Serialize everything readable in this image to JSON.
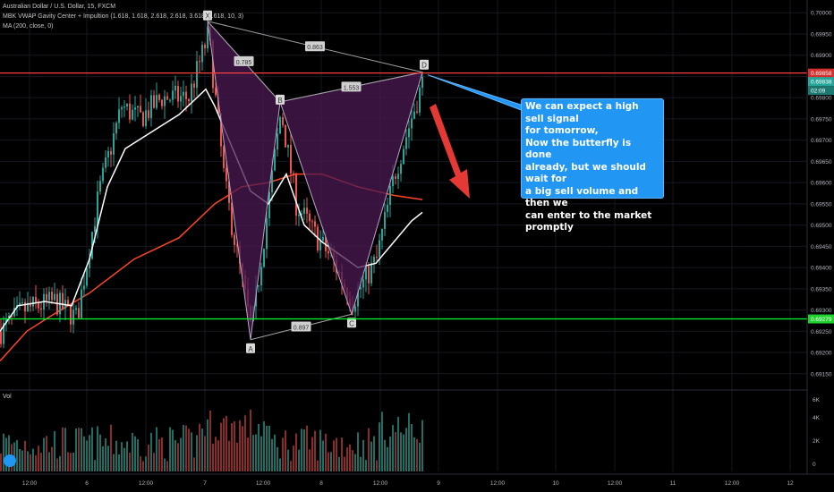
{
  "legend": {
    "symbol": "Australian Dollar / U.S. Dollar, 15, FXCM",
    "indicator1": "MBK VWAP Gavity Center + Impultion (1.618, 1.618, 2.618, 2.618, 3.618, 3.618, 10, 3)",
    "indicator2": "MA (200, close, 0)"
  },
  "volume_label": "Vol",
  "callout_text": "We can expect a high sell signal\nfor tomorrow,\nNow the butterfly is done\nalready, but we should wait for\na big sell volume and then we\ncan enter to the market\npromptly",
  "colors": {
    "background": "#000000",
    "up": "#26a69a",
    "down": "#ef5350",
    "red_line": "#ff4040",
    "green_line": "#00ff2a",
    "pattern_fill": "#4a1a52",
    "ma": "#ff4526",
    "vwap": "#ffffff",
    "callout": "#2196f3",
    "arrow": "#e53935"
  },
  "chart_data": {
    "type": "candlestick",
    "price_axis": {
      "ticks": [
        "0.70000",
        "0.69950",
        "0.69900",
        "0.69850",
        "0.69800",
        "0.69750",
        "0.69700",
        "0.69650",
        "0.69600",
        "0.69550",
        "0.69500",
        "0.69450",
        "0.69400",
        "0.69350",
        "0.69300",
        "0.69250",
        "0.69200",
        "0.69150"
      ],
      "range": [
        0.6912,
        0.7003
      ]
    },
    "price_labels": [
      {
        "value": 0.69858,
        "text": "0.69858",
        "color": "#d32f2f"
      },
      {
        "value": 0.69838,
        "text": "0.69838",
        "color": "#26a69a"
      },
      {
        "value": 0.69817,
        "text": "02:09",
        "color": "#1c7a73"
      },
      {
        "value": 0.69279,
        "text": "0.69279",
        "color": "#1fd12d"
      }
    ],
    "horizontal_lines": [
      {
        "value": 0.69858,
        "color": "#ff4040"
      },
      {
        "value": 0.69279,
        "color": "#00ff2a"
      }
    ],
    "time_axis": [
      "12:00",
      "6",
      "12:00",
      "7",
      "12:00",
      "8",
      "12:00",
      "9",
      "12:00",
      "10",
      "12:00",
      "11",
      "12:00",
      "12",
      "12:00",
      "13",
      "12:00",
      "14"
    ],
    "volume_axis": [
      "6K",
      "4K",
      "2K",
      "0"
    ],
    "pattern": {
      "name": "butterfly",
      "points": [
        {
          "label": "X",
          "bar": 232,
          "price": 0.6998
        },
        {
          "label": "A",
          "bar": 280,
          "price": 0.6923
        },
        {
          "label": "B",
          "bar": 313,
          "price": 0.6979
        },
        {
          "label": "C",
          "bar": 393,
          "price": 0.6929
        },
        {
          "label": "D",
          "bar": 472,
          "price": 0.6986
        }
      ],
      "ratios": [
        {
          "text": "0.785",
          "between": "XB"
        },
        {
          "text": "0.863",
          "between": "XD"
        },
        {
          "text": "1.553",
          "between": "BD"
        },
        {
          "text": "0.897",
          "between": "AC"
        }
      ]
    },
    "ma200": [
      [
        0,
        0.6918
      ],
      [
        30,
        0.6925
      ],
      [
        60,
        0.6929
      ],
      [
        100,
        0.6934
      ],
      [
        150,
        0.6942
      ],
      [
        200,
        0.6947
      ],
      [
        240,
        0.6955
      ],
      [
        270,
        0.6959
      ],
      [
        300,
        0.696
      ],
      [
        330,
        0.6962
      ],
      [
        360,
        0.6962
      ],
      [
        400,
        0.6959
      ],
      [
        440,
        0.6957
      ],
      [
        472,
        0.6956
      ]
    ],
    "vwap": [
      [
        0,
        0.6925
      ],
      [
        20,
        0.6931
      ],
      [
        50,
        0.6932
      ],
      [
        80,
        0.6931
      ],
      [
        100,
        0.6942
      ],
      [
        120,
        0.6959
      ],
      [
        140,
        0.6968
      ],
      [
        170,
        0.6972
      ],
      [
        200,
        0.6976
      ],
      [
        230,
        0.6982
      ],
      [
        240,
        0.6978
      ],
      [
        260,
        0.6968
      ],
      [
        280,
        0.6958
      ],
      [
        300,
        0.6955
      ],
      [
        320,
        0.6962
      ],
      [
        340,
        0.695
      ],
      [
        360,
        0.6946
      ],
      [
        380,
        0.6943
      ],
      [
        400,
        0.694
      ],
      [
        420,
        0.6941
      ],
      [
        440,
        0.6946
      ],
      [
        460,
        0.6951
      ],
      [
        472,
        0.6953
      ]
    ]
  }
}
